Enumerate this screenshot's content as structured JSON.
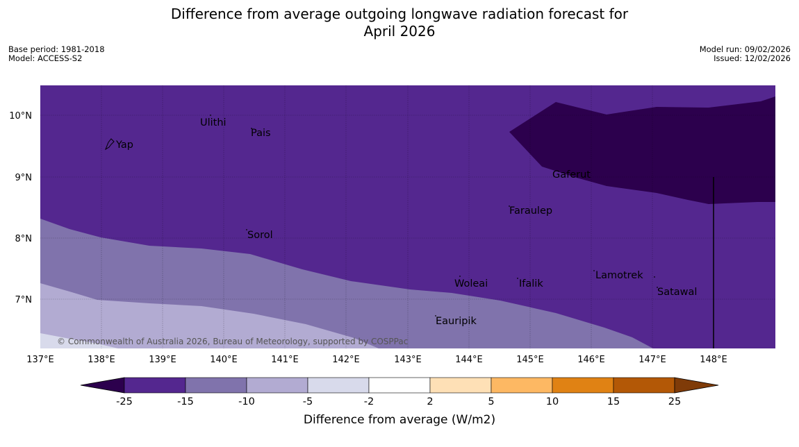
{
  "title": {
    "line1": "Difference from average outgoing longwave radiation forecast for",
    "line2": "April 2026"
  },
  "meta": {
    "base_period": "Base period: 1981-2018",
    "model": "Model: ACCESS-S2",
    "model_run": "Model run: 09/02/2026",
    "issued": "Issued: 12/02/2026"
  },
  "map": {
    "copyright": "© Commonwealth of Australia 2026, Bureau of Meteorology, supported by COSPPac",
    "lon_ticks": [
      "137°E",
      "138°E",
      "139°E",
      "140°E",
      "141°E",
      "142°E",
      "143°E",
      "144°E",
      "145°E",
      "146°E",
      "147°E",
      "148°E"
    ],
    "lat_ticks": [
      "10°N",
      "9°N",
      "8°N",
      "7°N"
    ],
    "places": [
      "Ulithi",
      "Pais",
      "Yap",
      "Gaferut",
      "Faraulep",
      "Sorol",
      "Woleai",
      "Ifalik",
      "Lamotrek",
      "Satawal",
      "Eauripik"
    ]
  },
  "colorbar": {
    "title": "Difference from average (W/m2)",
    "tick_labels": [
      "-25",
      "-15",
      "-10",
      "-5",
      "-2",
      "2",
      "5",
      "10",
      "15",
      "25"
    ],
    "colors": [
      "#2c004d",
      "#54278f",
      "#8073ac",
      "#b2abd2",
      "#d8daeb",
      "#ffffff",
      "#fee0b6",
      "#fdb863",
      "#e08214",
      "#b35806",
      "#7f3b08"
    ]
  }
}
